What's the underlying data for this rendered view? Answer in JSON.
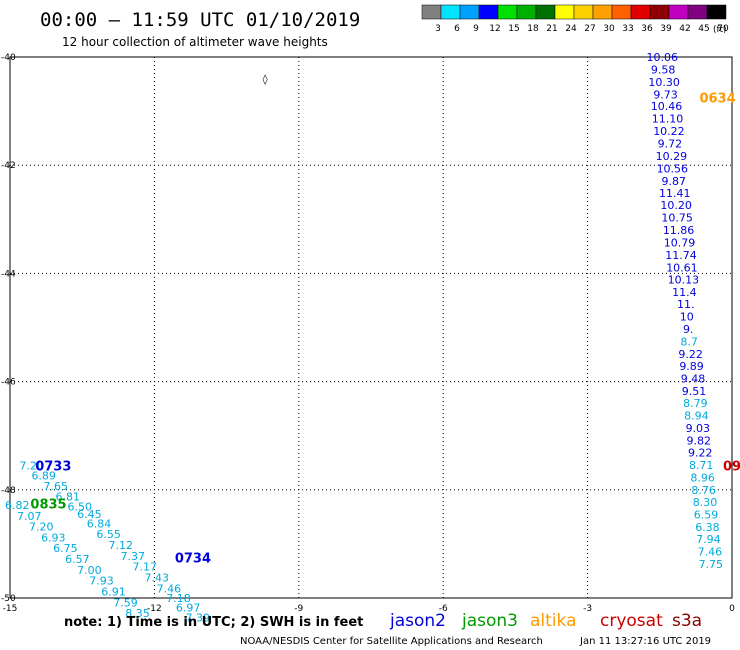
{
  "header": {
    "title": "00:00 – 11:59 UTC 01/10/2019",
    "subtitle": "12 hour collection of altimeter wave heights"
  },
  "colorbar": {
    "ticks": [
      "3",
      "6",
      "9",
      "12",
      "15",
      "18",
      "21",
      "24",
      "27",
      "30",
      "33",
      "36",
      "39",
      "42",
      "45",
      "70"
    ],
    "unit": "(ft)",
    "colors": [
      "#808080",
      "#00e5ff",
      "#00a0ff",
      "#0000ff",
      "#00e000",
      "#00b000",
      "#007000",
      "#ffff00",
      "#ffd000",
      "#ffa000",
      "#ff6000",
      "#e00000",
      "#900000",
      "#c000c0",
      "#800080",
      "#000000"
    ]
  },
  "footer": {
    "note": "note: 1) Time is in UTC; 2) SWH is in feet",
    "credit": "NOAA/NESDIS Center for Satellite Applications and Research",
    "generated": "Jan 11 13:27:16 UTC 2019"
  },
  "satellites": [
    {
      "name": "jason2",
      "color": "#0000dd"
    },
    {
      "name": "jason3",
      "color": "#009900"
    },
    {
      "name": "altika",
      "color": "#ff9900"
    },
    {
      "name": "cryosat",
      "color": "#cc0000"
    },
    {
      "name": "s3a",
      "color": "#880000"
    }
  ],
  "chart_data": {
    "type": "scatter",
    "xlim": [
      -15,
      0
    ],
    "ylim": [
      -50,
      -40
    ],
    "xticks": [
      "-15",
      "-12",
      "-9",
      "-6",
      "-3",
      "0"
    ],
    "yticks": [
      "-40",
      "-42",
      "-44",
      "-46",
      "-48",
      "-50"
    ],
    "grid": true,
    "track_labels": [
      {
        "text": "0634",
        "color": "#ff9900",
        "lon": -0.3,
        "lat": -40.75
      },
      {
        "text": "0733",
        "color": "#0000dd",
        "lon": -14.1,
        "lat": -47.55
      },
      {
        "text": "0835",
        "color": "#009900",
        "lon": -14.2,
        "lat": -48.25
      },
      {
        "text": "0734",
        "color": "#0000dd",
        "lon": -11.2,
        "lat": -49.25
      },
      {
        "text": "09",
        "color": "#cc0000",
        "lon": 0.0,
        "lat": -47.55
      }
    ],
    "series": [
      {
        "color": "#0000dd",
        "points": [
          [
            -1.45,
            -40.0,
            "10.06"
          ],
          [
            -1.43,
            -40.23,
            "9.58"
          ],
          [
            -1.41,
            -40.46,
            "10.30"
          ],
          [
            -1.38,
            -40.69,
            "9.73"
          ],
          [
            -1.36,
            -40.91,
            "10.46"
          ],
          [
            -1.34,
            -41.14,
            "11.10"
          ],
          [
            -1.31,
            -41.37,
            "10.22"
          ],
          [
            -1.29,
            -41.6,
            "9.72"
          ],
          [
            -1.26,
            -41.83,
            "10.29"
          ],
          [
            -1.24,
            -42.06,
            "10.56"
          ],
          [
            -1.21,
            -42.29,
            "9.87"
          ],
          [
            -1.19,
            -42.51,
            "11.41"
          ],
          [
            -1.16,
            -42.74,
            "10.20"
          ],
          [
            -1.14,
            -42.97,
            "10.75"
          ],
          [
            -1.11,
            -43.2,
            "11.86"
          ],
          [
            -1.09,
            -43.43,
            "10.79"
          ],
          [
            -1.06,
            -43.66,
            "11.74"
          ],
          [
            -1.04,
            -43.89,
            "10.61"
          ],
          [
            -1.01,
            -44.11,
            "10.13"
          ],
          [
            -0.99,
            -44.34,
            "11.4"
          ],
          [
            -0.96,
            -44.57,
            "11."
          ],
          [
            -0.94,
            -44.8,
            "10"
          ],
          [
            -0.91,
            -45.03,
            "9."
          ]
        ]
      },
      {
        "color": "#00aadd",
        "points": [
          [
            -0.89,
            -45.26,
            "8.7"
          ]
        ]
      },
      {
        "color": "#0000dd",
        "points": [
          [
            -0.86,
            -45.49,
            "9.22"
          ],
          [
            -0.84,
            -45.71,
            "9.89"
          ],
          [
            -0.81,
            -45.94,
            "9.48"
          ],
          [
            -0.79,
            -46.17,
            "9.51"
          ]
        ]
      },
      {
        "color": "#00aadd",
        "points": [
          [
            -0.76,
            -46.4,
            "8.79"
          ],
          [
            -0.74,
            -46.63,
            "8.94"
          ]
        ]
      },
      {
        "color": "#0000dd",
        "points": [
          [
            -0.71,
            -46.86,
            "9.03"
          ],
          [
            -0.69,
            -47.09,
            "9.82"
          ],
          [
            -0.66,
            -47.31,
            "9.22"
          ]
        ]
      },
      {
        "color": "#00aadd",
        "points": [
          [
            -0.64,
            -47.54,
            "8.71"
          ],
          [
            -0.61,
            -47.77,
            "8.96"
          ],
          [
            -0.59,
            -48.0,
            "8.76"
          ],
          [
            -0.56,
            -48.23,
            "8.30"
          ],
          [
            -0.54,
            -48.46,
            "6.59"
          ],
          [
            -0.51,
            -48.69,
            "6.38"
          ],
          [
            -0.49,
            -48.91,
            "7.94"
          ],
          [
            -0.46,
            -49.14,
            "7.46"
          ],
          [
            -0.44,
            -49.37,
            "7.75"
          ]
        ]
      },
      {
        "color": "#00aadd",
        "points": [
          [
            -14.55,
            -47.55,
            "7.20"
          ],
          [
            -14.3,
            -47.74,
            "6.89"
          ],
          [
            -14.05,
            -47.93,
            "7.65"
          ],
          [
            -13.8,
            -48.12,
            "6.81"
          ],
          [
            -13.55,
            -48.31,
            "6.50"
          ],
          [
            -13.35,
            -48.45,
            "6.45"
          ],
          [
            -13.15,
            -48.62,
            "6.84"
          ],
          [
            -12.95,
            -48.82,
            "6.55"
          ],
          [
            -12.7,
            -49.02,
            "7.12"
          ],
          [
            -12.45,
            -49.22,
            "7.37"
          ],
          [
            -12.2,
            -49.42,
            "7.17"
          ],
          [
            -11.95,
            -49.62,
            "7.43"
          ],
          [
            -11.7,
            -49.82,
            "7.46"
          ],
          [
            -11.5,
            -50.0,
            "7.18"
          ],
          [
            -11.3,
            -50.18,
            "6.97"
          ],
          [
            -11.1,
            -50.36,
            "7.39"
          ]
        ]
      },
      {
        "color": "#00aadd",
        "points": [
          [
            -14.85,
            -48.28,
            "6.82"
          ],
          [
            -14.6,
            -48.48,
            "7.07"
          ],
          [
            -14.35,
            -48.68,
            "7.20"
          ],
          [
            -14.1,
            -48.88,
            "6.93"
          ],
          [
            -13.85,
            -49.08,
            "6.75"
          ],
          [
            -13.6,
            -49.28,
            "6.57"
          ],
          [
            -13.35,
            -49.48,
            "7.00"
          ],
          [
            -13.1,
            -49.68,
            "7.93"
          ],
          [
            -12.85,
            -49.88,
            "6.91"
          ],
          [
            -12.6,
            -50.08,
            "7.59"
          ],
          [
            -12.35,
            -50.28,
            "8.35"
          ]
        ]
      }
    ],
    "marker": {
      "lon": -9.7,
      "lat": -40.4,
      "symbol": "◊"
    }
  }
}
